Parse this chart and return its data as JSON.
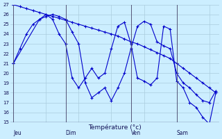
{
  "xlabel": "Température (°c)",
  "bg_color": "#cceeff",
  "grid_color": "#aaccdd",
  "line_color": "#0000cc",
  "ylim": [
    15,
    27
  ],
  "yticks": [
    15,
    16,
    17,
    18,
    19,
    20,
    21,
    22,
    23,
    24,
    25,
    26,
    27
  ],
  "day_labels": [
    "Jeu",
    "Dim",
    "Ven",
    "Sam"
  ],
  "day_positions": [
    0,
    8,
    18,
    25
  ],
  "num_points": 32,
  "series1": {
    "x": [
      0,
      1,
      2,
      3,
      4,
      5,
      6,
      7,
      8,
      9,
      10,
      11,
      12,
      13,
      14,
      15,
      16,
      17,
      18,
      19,
      20,
      21,
      22,
      23,
      24,
      25,
      26,
      27,
      28,
      29,
      30,
      31
    ],
    "y": [
      27.0,
      26.8,
      26.6,
      26.4,
      26.2,
      26.0,
      25.8,
      25.6,
      25.4,
      25.2,
      25.0,
      24.8,
      24.6,
      24.4,
      24.2,
      24.0,
      23.8,
      23.5,
      23.2,
      23.0,
      22.7,
      22.4,
      22.1,
      21.8,
      21.5,
      21.0,
      20.5,
      20.0,
      19.5,
      19.0,
      18.5,
      18.0
    ]
  },
  "series2": {
    "x": [
      0,
      1,
      2,
      3,
      4,
      5,
      6,
      7,
      8,
      9,
      10,
      11,
      12,
      13,
      14,
      15,
      16,
      17,
      18,
      19,
      20,
      21,
      22,
      23,
      24,
      25,
      26,
      27,
      28,
      29,
      30,
      31
    ],
    "y": [
      21.0,
      22.5,
      24.0,
      25.0,
      25.5,
      25.8,
      26.0,
      25.8,
      25.5,
      24.2,
      23.0,
      19.0,
      17.5,
      18.0,
      18.5,
      17.2,
      18.5,
      20.0,
      22.5,
      24.8,
      25.3,
      25.0,
      23.2,
      22.8,
      22.5,
      20.0,
      19.0,
      18.5,
      17.8,
      17.2,
      17.0,
      18.2
    ]
  },
  "series3": {
    "x": [
      0,
      4,
      5,
      6,
      7,
      8,
      9,
      10,
      11,
      12,
      13,
      14,
      15,
      16,
      17,
      18,
      19,
      20,
      21,
      22,
      23,
      24,
      25,
      26,
      27,
      28,
      29,
      30,
      31
    ],
    "y": [
      21.0,
      25.5,
      26.0,
      25.5,
      24.0,
      23.0,
      19.5,
      18.5,
      19.5,
      20.5,
      19.5,
      20.0,
      22.5,
      24.8,
      25.2,
      23.0,
      19.5,
      19.2,
      18.8,
      19.5,
      24.8,
      24.5,
      19.2,
      18.5,
      17.0,
      16.5,
      15.5,
      14.8,
      18.0
    ]
  }
}
